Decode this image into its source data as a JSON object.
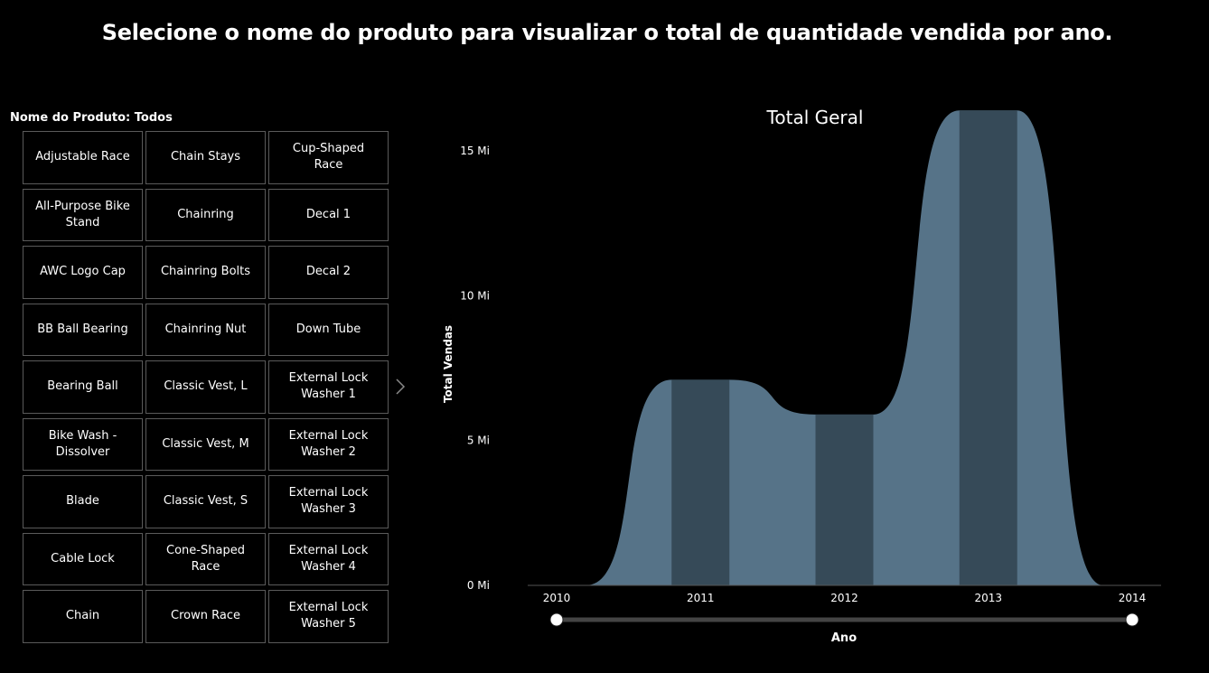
{
  "page": {
    "title": "Selecione o nome do produto para visualizar o total de quantidade vendida por ano."
  },
  "slicer": {
    "header": "Nome do Produto: Todos",
    "items": [
      "Adjustable Race",
      "Chain Stays",
      "Cup-Shaped Race",
      "All-Purpose Bike Stand",
      "Chainring",
      "Decal 1",
      "AWC Logo Cap",
      "Chainring Bolts",
      "Decal 2",
      "BB Ball Bearing",
      "Chainring Nut",
      "Down Tube",
      "Bearing Ball",
      "Classic Vest, L",
      "External Lock Washer 1",
      "Bike Wash - Dissolver",
      "Classic Vest, M",
      "External Lock Washer 2",
      "Blade",
      "Classic Vest, S",
      "External Lock Washer 3",
      "Cable Lock",
      "Cone-Shaped Race",
      "External Lock Washer 4",
      "Chain",
      "Crown Race",
      "External Lock Washer 5"
    ],
    "next_icon": "chevron-right-icon"
  },
  "chart_data": {
    "type": "area",
    "title": "Total Geral",
    "xlabel": "Ano",
    "ylabel": "Total Vendas",
    "x": [
      2010,
      2011,
      2012,
      2013,
      2014
    ],
    "series": [
      {
        "values": [
          0,
          7.1,
          5.9,
          16.4,
          0
        ]
      }
    ],
    "ylim": [
      0,
      17
    ],
    "xlim": [
      2010,
      2014
    ],
    "yticks": [
      0,
      5,
      10,
      15
    ],
    "ytick_labels": [
      "0 Mi",
      "5 Mi",
      "10 Mi",
      "15 Mi"
    ],
    "xtick_labels": [
      "2010",
      "2011",
      "2012",
      "2013",
      "2014"
    ],
    "grid": false,
    "colors": {
      "area": "#567388",
      "band": "#364a58",
      "axis": "#555555",
      "slider_track": "#444444",
      "slider_handle": "#ffffff"
    },
    "year_slider": {
      "start": 2010,
      "end": 2014
    }
  }
}
